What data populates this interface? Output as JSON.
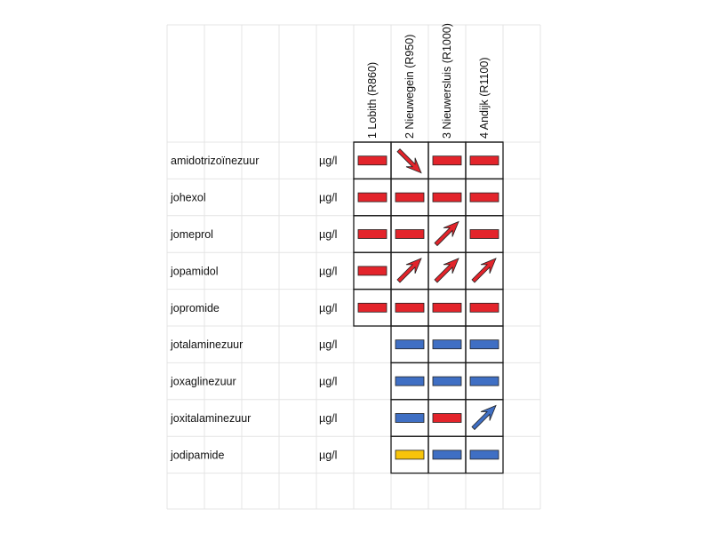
{
  "columns": [
    {
      "label": "1 Lobith (R860)"
    },
    {
      "label": "2 Nieuwegein (R950)"
    },
    {
      "label": "3 Nieuwersluis (R1000)"
    },
    {
      "label": "4 Andijk (R1100)"
    }
  ],
  "colors": {
    "red": "#e3242b",
    "blue": "#3f6fc4",
    "yellow": "#f7c40a"
  },
  "rows": [
    {
      "name": "amidotrizoïnezuur",
      "unit": "µg/l",
      "cells": [
        {
          "symbol": "bar",
          "color": "red"
        },
        {
          "symbol": "arrow-down-right",
          "color": "red"
        },
        {
          "symbol": "bar",
          "color": "red"
        },
        {
          "symbol": "bar",
          "color": "red"
        }
      ]
    },
    {
      "name": "johexol",
      "unit": "µg/l",
      "cells": [
        {
          "symbol": "bar",
          "color": "red"
        },
        {
          "symbol": "bar",
          "color": "red"
        },
        {
          "symbol": "bar",
          "color": "red"
        },
        {
          "symbol": "bar",
          "color": "red"
        }
      ]
    },
    {
      "name": "jomeprol",
      "unit": "µg/l",
      "cells": [
        {
          "symbol": "bar",
          "color": "red"
        },
        {
          "symbol": "bar",
          "color": "red"
        },
        {
          "symbol": "arrow-up-right",
          "color": "red"
        },
        {
          "symbol": "bar",
          "color": "red"
        }
      ]
    },
    {
      "name": "jopamidol",
      "unit": "µg/l",
      "cells": [
        {
          "symbol": "bar",
          "color": "red"
        },
        {
          "symbol": "arrow-up-right",
          "color": "red"
        },
        {
          "symbol": "arrow-up-right",
          "color": "red"
        },
        {
          "symbol": "arrow-up-right",
          "color": "red"
        }
      ]
    },
    {
      "name": "jopromide",
      "unit": "µg/l",
      "cells": [
        {
          "symbol": "bar",
          "color": "red"
        },
        {
          "symbol": "bar",
          "color": "red"
        },
        {
          "symbol": "bar",
          "color": "red"
        },
        {
          "symbol": "bar",
          "color": "red"
        }
      ]
    },
    {
      "name": "jotalaminezuur",
      "unit": "µg/l",
      "cells": [
        null,
        {
          "symbol": "bar",
          "color": "blue"
        },
        {
          "symbol": "bar",
          "color": "blue"
        },
        {
          "symbol": "bar",
          "color": "blue"
        }
      ]
    },
    {
      "name": "joxaglinezuur",
      "unit": "µg/l",
      "cells": [
        null,
        {
          "symbol": "bar",
          "color": "blue"
        },
        {
          "symbol": "bar",
          "color": "blue"
        },
        {
          "symbol": "bar",
          "color": "blue"
        }
      ]
    },
    {
      "name": "joxitalaminezuur",
      "unit": "µg/l",
      "cells": [
        null,
        {
          "symbol": "bar",
          "color": "blue"
        },
        {
          "symbol": "bar",
          "color": "red"
        },
        {
          "symbol": "arrow-up-right",
          "color": "blue"
        }
      ]
    },
    {
      "name": "jodipamide",
      "unit": "µg/l",
      "cells": [
        null,
        {
          "symbol": "bar",
          "color": "yellow"
        },
        {
          "symbol": "bar",
          "color": "blue"
        },
        {
          "symbol": "bar",
          "color": "blue"
        }
      ]
    }
  ]
}
